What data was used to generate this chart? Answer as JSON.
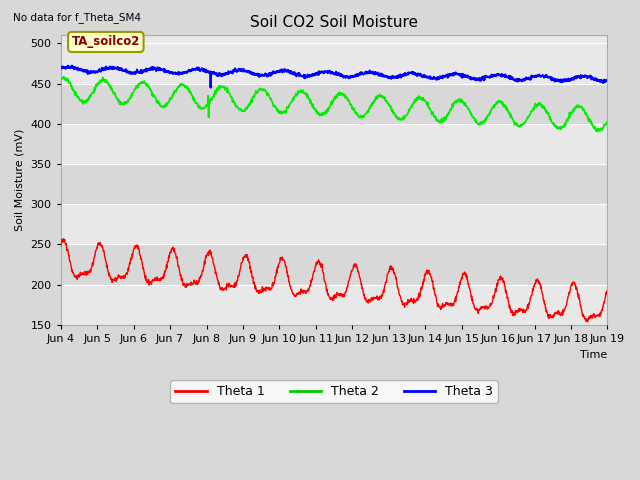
{
  "title": "Soil CO2 Soil Moisture",
  "ylabel": "Soil Moisture (mV)",
  "xlabel": "Time",
  "no_data_text": "No data for f_Theta_SM4",
  "annotation_text": "TA_soilco2",
  "ylim": [
    150,
    510
  ],
  "yticks": [
    150,
    200,
    250,
    300,
    350,
    400,
    450,
    500
  ],
  "x_tick_labels": [
    "Jun 4",
    "Jun 5",
    "Jun 6",
    "Jun 7",
    "Jun 8",
    "Jun 9",
    "Jun 10",
    "Jun 11",
    "Jun 12",
    "Jun 13",
    "Jun 14",
    "Jun 15",
    "Jun 16",
    "Jun 17",
    "Jun 18",
    "Jun 19"
  ],
  "legend_labels": [
    "Theta 1",
    "Theta 2",
    "Theta 3"
  ],
  "legend_colors": [
    "#ff0000",
    "#00cc00",
    "#0000ff"
  ],
  "bg_color": "#d8d8d8",
  "plot_bg_color_light": "#e8e8e8",
  "plot_bg_color_dark": "#d0d0d0",
  "theta1_color": "#ff0000",
  "theta2_color": "#00ee00",
  "theta3_color": "#0000ff",
  "title_fontsize": 11,
  "axis_label_fontsize": 8,
  "tick_fontsize": 8
}
